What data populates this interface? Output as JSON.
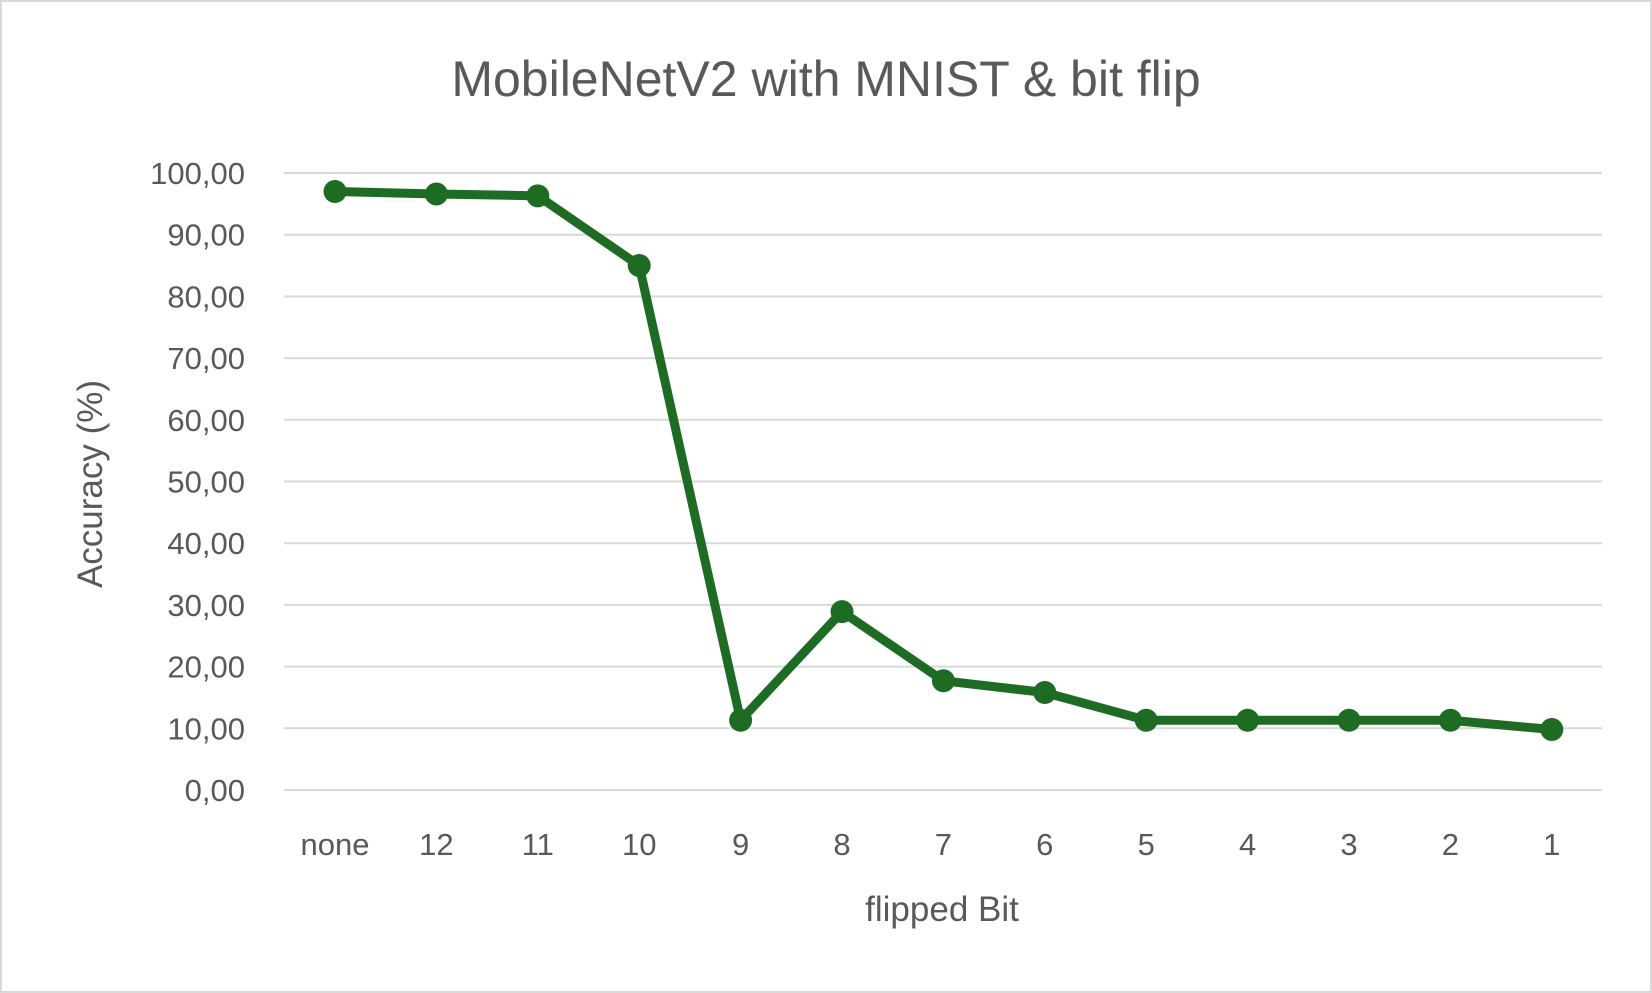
{
  "chart_data": {
    "type": "line",
    "title": "MobileNetV2 with MNIST & bit flip",
    "xlabel": "flipped Bit",
    "ylabel": "Accuracy (%)",
    "categories": [
      "none",
      "12",
      "11",
      "10",
      "9",
      "8",
      "7",
      "6",
      "5",
      "4",
      "3",
      "2",
      "1"
    ],
    "series": [
      {
        "values": [
          97.0,
          96.6,
          96.3,
          85.0,
          11.3,
          28.9,
          17.7,
          15.8,
          11.3,
          11.3,
          11.3,
          11.3,
          9.8
        ]
      }
    ],
    "ylim": [
      0,
      100
    ],
    "yticks": [
      "0,00",
      "10,00",
      "20,00",
      "30,00",
      "40,00",
      "50,00",
      "60,00",
      "70,00",
      "80,00",
      "90,00",
      "100,00"
    ],
    "grid": true,
    "legend": "none",
    "colors": {
      "series": "#1e6b24",
      "grid": "#d9d9d9",
      "text": "#595959"
    }
  }
}
